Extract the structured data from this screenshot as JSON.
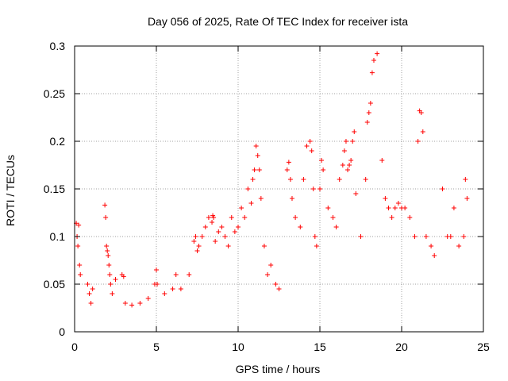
{
  "chart_data": {
    "type": "scatter",
    "title": "Day 056 of 2025, Rate Of TEC Index for receiver ista",
    "xlabel": "GPS time / hours",
    "ylabel": "ROTI / TECUs",
    "xlim": [
      0,
      25
    ],
    "ylim": [
      0,
      0.3
    ],
    "xticks": [
      0,
      5,
      10,
      15,
      20,
      25
    ],
    "xtick_labels": [
      "0",
      "5",
      "10",
      "15",
      "20",
      "25"
    ],
    "yticks": [
      0,
      0.05,
      0.1,
      0.15,
      0.2,
      0.25,
      0.3
    ],
    "ytick_labels": [
      "0",
      "0.05",
      "0.1",
      "0.15",
      "0.2",
      "0.25",
      "0.3"
    ],
    "grid": true,
    "marker": "+",
    "series_color": "#ff0000",
    "series": [
      {
        "name": "ROTI",
        "x": [
          0.1,
          0.15,
          0.2,
          0.25,
          0.3,
          0.35,
          0.8,
          0.9,
          1.0,
          1.1,
          1.85,
          1.9,
          1.95,
          2.0,
          2.05,
          2.1,
          2.15,
          2.2,
          2.3,
          2.5,
          2.9,
          3.0,
          3.1,
          3.5,
          4.0,
          4.5,
          4.9,
          5.0,
          5.05,
          5.5,
          6.0,
          6.2,
          6.5,
          7.0,
          7.3,
          7.4,
          7.5,
          7.6,
          7.8,
          8.0,
          8.2,
          8.4,
          8.45,
          8.5,
          8.6,
          8.8,
          9.0,
          9.2,
          9.4,
          9.6,
          9.8,
          10.0,
          10.2,
          10.4,
          10.6,
          10.8,
          10.9,
          11.0,
          11.1,
          11.2,
          11.3,
          11.4,
          11.6,
          11.8,
          12.0,
          12.3,
          12.5,
          13.0,
          13.1,
          13.2,
          13.3,
          13.5,
          13.8,
          14.0,
          14.2,
          14.4,
          14.5,
          14.6,
          14.7,
          14.8,
          15.0,
          15.1,
          15.2,
          15.5,
          15.8,
          16.0,
          16.2,
          16.4,
          16.5,
          16.6,
          16.7,
          16.8,
          16.9,
          17.0,
          17.1,
          17.2,
          17.5,
          17.8,
          17.9,
          18.0,
          18.1,
          18.2,
          18.3,
          18.5,
          18.8,
          19.0,
          19.2,
          19.4,
          19.6,
          19.8,
          20.0,
          20.2,
          20.5,
          20.8,
          21.0,
          21.1,
          21.2,
          21.3,
          21.5,
          21.8,
          22.0,
          22.5,
          22.8,
          23.0,
          23.2,
          23.5,
          23.8,
          23.9,
          24.0
        ],
        "y": [
          0.114,
          0.1,
          0.09,
          0.112,
          0.07,
          0.06,
          0.05,
          0.04,
          0.03,
          0.045,
          0.133,
          0.12,
          0.09,
          0.085,
          0.08,
          0.07,
          0.06,
          0.05,
          0.04,
          0.055,
          0.06,
          0.058,
          0.03,
          0.028,
          0.03,
          0.035,
          0.05,
          0.065,
          0.05,
          0.04,
          0.045,
          0.06,
          0.045,
          0.06,
          0.095,
          0.1,
          0.085,
          0.09,
          0.1,
          0.11,
          0.12,
          0.115,
          0.122,
          0.12,
          0.095,
          0.105,
          0.11,
          0.1,
          0.09,
          0.12,
          0.105,
          0.11,
          0.13,
          0.12,
          0.15,
          0.135,
          0.16,
          0.17,
          0.195,
          0.185,
          0.17,
          0.14,
          0.09,
          0.06,
          0.07,
          0.05,
          0.045,
          0.17,
          0.178,
          0.16,
          0.14,
          0.12,
          0.11,
          0.16,
          0.195,
          0.2,
          0.19,
          0.15,
          0.1,
          0.09,
          0.15,
          0.18,
          0.17,
          0.13,
          0.12,
          0.11,
          0.16,
          0.175,
          0.19,
          0.2,
          0.17,
          0.175,
          0.18,
          0.2,
          0.21,
          0.145,
          0.1,
          0.16,
          0.22,
          0.23,
          0.24,
          0.272,
          0.285,
          0.292,
          0.18,
          0.14,
          0.13,
          0.12,
          0.13,
          0.135,
          0.13,
          0.13,
          0.12,
          0.1,
          0.2,
          0.232,
          0.23,
          0.21,
          0.1,
          0.09,
          0.08,
          0.15,
          0.1,
          0.1,
          0.13,
          0.09,
          0.1,
          0.16,
          0.14
        ]
      }
    ]
  }
}
